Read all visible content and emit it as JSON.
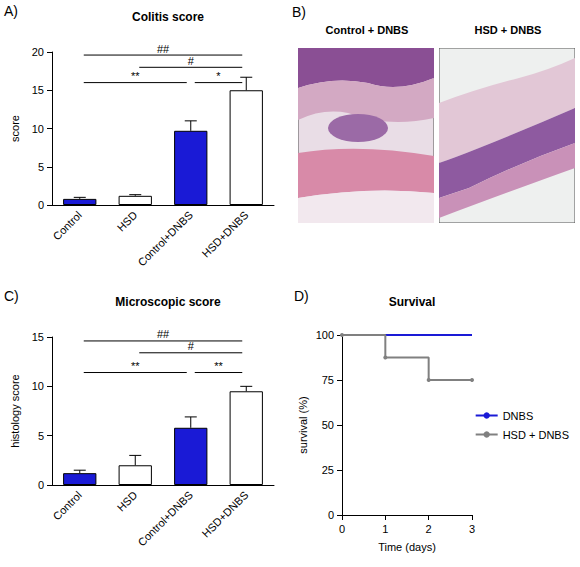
{
  "chart_data": [
    {
      "type": "bar",
      "panel": "A)",
      "title": "Colitis score",
      "ylabel": "score",
      "categories": [
        "Control",
        "HSD",
        "Control+DNBS",
        "HSD+DNBS"
      ],
      "values": [
        0.8,
        1.2,
        9.7,
        15.0
      ],
      "errors": [
        0.2,
        0.15,
        1.3,
        1.7
      ],
      "colors": [
        "#1a1ad6",
        "#ffffff",
        "#1a1ad6",
        "#ffffff"
      ],
      "ylim": [
        0,
        20
      ],
      "yticks": [
        0,
        5,
        10,
        15,
        20
      ],
      "grid": false,
      "annotations": [
        {
          "from": "Control",
          "to": "HSD+DNBS",
          "y": 19.6,
          "text": "##"
        },
        {
          "from": "HSD",
          "to": "HSD+DNBS",
          "y": 18.0,
          "text": "#"
        },
        {
          "from": "Control",
          "to": "Control+DNBS",
          "y": 16.0,
          "text": "**"
        },
        {
          "from": "Control+DNBS",
          "to": "HSD+DNBS",
          "y": 16.0,
          "text": "*"
        }
      ]
    },
    {
      "type": "bar",
      "panel": "C)",
      "title": "Microscopic score",
      "ylabel": "histology score",
      "categories": [
        "Control",
        "HSD",
        "Control+DNBS",
        "HSD+DNBS"
      ],
      "values": [
        1.2,
        2.0,
        5.8,
        9.5
      ],
      "errors": [
        0.3,
        1.0,
        1.1,
        0.5
      ],
      "colors": [
        "#1a1ad6",
        "#ffffff",
        "#1a1ad6",
        "#ffffff"
      ],
      "ylim": [
        0,
        15
      ],
      "yticks": [
        0,
        5,
        10,
        15
      ],
      "grid": false,
      "annotations": [
        {
          "from": "Control",
          "to": "HSD+DNBS",
          "y": 14.6,
          "text": "##"
        },
        {
          "from": "HSD",
          "to": "HSD+DNBS",
          "y": 13.4,
          "text": "#"
        },
        {
          "from": "Control",
          "to": "Control+DNBS",
          "y": 11.4,
          "text": "**"
        },
        {
          "from": "Control+DNBS",
          "to": "HSD+DNBS",
          "y": 11.4,
          "text": "**"
        }
      ]
    },
    {
      "type": "line",
      "panel": "D)",
      "title": "Survival",
      "xlabel": "Time (days)",
      "ylabel": "survival (%)",
      "x": [
        0,
        1,
        2,
        3
      ],
      "series": [
        {
          "name": "DNBS",
          "color": "#1a1ad6",
          "values": [
            100,
            100,
            100,
            100
          ],
          "line_style": "step",
          "marker": "none"
        },
        {
          "name": "HSD + DNBS",
          "color": "#808080",
          "values": [
            100,
            87.5,
            75,
            75
          ],
          "line_style": "step",
          "marker": "circle"
        }
      ],
      "xlim": [
        0,
        3
      ],
      "xticks": [
        0,
        1,
        2,
        3
      ],
      "ylim": [
        0,
        100
      ],
      "yticks": [
        0,
        25,
        50,
        75,
        100
      ],
      "grid": false,
      "legend": "right"
    }
  ],
  "image_panel": {
    "panel": "B)",
    "images": [
      {
        "title": "Control + DNBS"
      },
      {
        "title": "HSD + DNBS"
      }
    ]
  }
}
